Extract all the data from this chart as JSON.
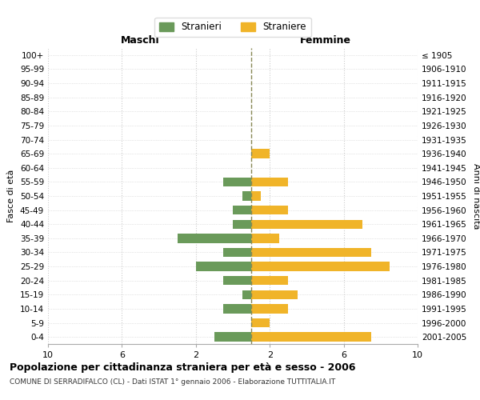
{
  "age_groups": [
    "100+",
    "95-99",
    "90-94",
    "85-89",
    "80-84",
    "75-79",
    "70-74",
    "65-69",
    "60-64",
    "55-59",
    "50-54",
    "45-49",
    "40-44",
    "35-39",
    "30-34",
    "25-29",
    "20-24",
    "15-19",
    "10-14",
    "5-9",
    "0-4"
  ],
  "birth_years": [
    "≤ 1905",
    "1906-1910",
    "1911-1915",
    "1916-1920",
    "1921-1925",
    "1926-1930",
    "1931-1935",
    "1936-1940",
    "1941-1945",
    "1946-1950",
    "1951-1955",
    "1956-1960",
    "1961-1965",
    "1966-1970",
    "1971-1975",
    "1976-1980",
    "1981-1985",
    "1986-1990",
    "1991-1995",
    "1996-2000",
    "2001-2005"
  ],
  "males": [
    0,
    0,
    0,
    0,
    0,
    0,
    0,
    0,
    0,
    1.5,
    0.5,
    1.0,
    1.0,
    4.0,
    1.5,
    3.0,
    1.5,
    0.5,
    1.5,
    0,
    2.0
  ],
  "females": [
    0,
    0,
    0,
    0,
    0,
    0,
    0,
    1.0,
    0,
    2.0,
    0.5,
    2.0,
    6.0,
    1.5,
    6.5,
    7.5,
    2.0,
    2.5,
    2.0,
    1.0,
    6.5
  ],
  "male_color": "#6a9a5a",
  "female_color": "#f0b429",
  "center_line_color": "#888855",
  "bg_color": "#ffffff",
  "grid_color": "#cccccc",
  "title": "Popolazione per cittadinanza straniera per età e sesso - 2006",
  "subtitle": "COMUNE DI SERRADIFALCO (CL) - Dati ISTAT 1° gennaio 2006 - Elaborazione TUTTITALIA.IT",
  "xlabel_left": "Maschi",
  "xlabel_right": "Femmine",
  "ylabel_left": "Fasce di età",
  "ylabel_right": "Anni di nascita",
  "legend_stranieri": "Stranieri",
  "legend_straniere": "Straniere"
}
